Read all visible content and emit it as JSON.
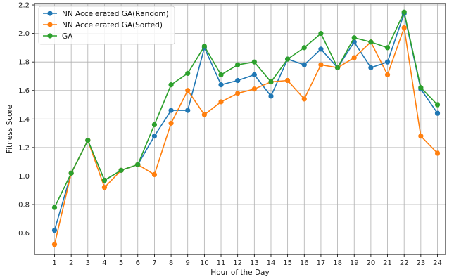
{
  "chart_data": {
    "type": "line",
    "title": "",
    "xlabel": "Hour of the Day",
    "ylabel": "Fitness Score",
    "categories": [
      "1",
      "2",
      "3",
      "4",
      "5",
      "6",
      "7",
      "8",
      "9",
      "10",
      "11",
      "12",
      "13",
      "14",
      "15",
      "16",
      "17",
      "18",
      "19",
      "20",
      "21",
      "22",
      "23",
      "24"
    ],
    "yticks": [
      "0.6",
      "0.8",
      "1.0",
      "1.2",
      "1.4",
      "1.6",
      "1.8",
      "2.0",
      "2.2"
    ],
    "ylim": [
      0.45,
      2.21
    ],
    "grid": true,
    "legend_position": "top-left",
    "series": [
      {
        "name": "NN Accelerated GA(Random)",
        "color": "#1f77b4",
        "values": [
          0.62,
          1.02,
          1.25,
          0.97,
          1.04,
          1.08,
          1.28,
          1.46,
          1.46,
          1.9,
          1.64,
          1.67,
          1.71,
          1.56,
          1.82,
          1.78,
          1.89,
          1.76,
          1.94,
          1.76,
          1.8,
          2.14,
          1.61,
          1.44
        ]
      },
      {
        "name": "NN Accelerated GA(Sorted)",
        "color": "#ff7f0e",
        "values": [
          0.52,
          1.02,
          1.25,
          0.92,
          1.04,
          1.08,
          1.01,
          1.37,
          1.6,
          1.43,
          1.52,
          1.58,
          1.61,
          1.66,
          1.67,
          1.54,
          1.78,
          1.76,
          1.83,
          1.94,
          1.71,
          2.04,
          1.28,
          1.16
        ]
      },
      {
        "name": "GA",
        "color": "#2ca02c",
        "values": [
          0.78,
          1.02,
          1.25,
          0.97,
          1.04,
          1.08,
          1.36,
          1.64,
          1.72,
          1.91,
          1.71,
          1.78,
          1.8,
          1.66,
          1.82,
          1.9,
          2.0,
          1.76,
          1.97,
          1.94,
          1.9,
          2.15,
          1.62,
          1.5
        ]
      }
    ]
  }
}
